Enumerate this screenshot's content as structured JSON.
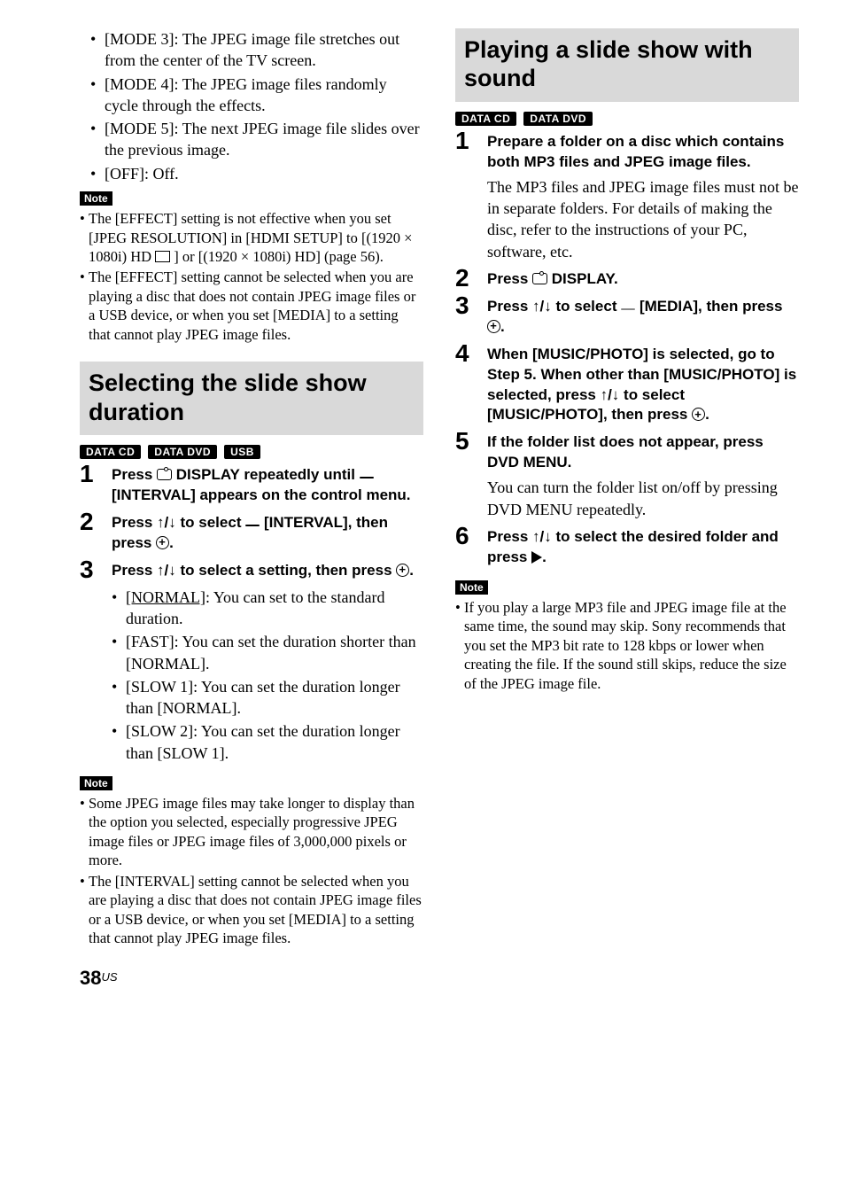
{
  "colors": {
    "bg": "#ffffff",
    "text": "#000000",
    "header_bg": "#d9d9d9",
    "badge_bg": "#000000",
    "badge_text": "#ffffff"
  },
  "left": {
    "mode_bullets": [
      "[MODE 3]: The JPEG image file stretches out from the center of the TV screen.",
      "[MODE 4]: The JPEG image files randomly cycle through the effects.",
      "[MODE 5]: The next JPEG image file slides over the previous image.",
      "[OFF]: Off."
    ],
    "note1_label": "Note",
    "note1_items": [
      "The [EFFECT] setting is not effective when you set [JPEG RESOLUTION] in [HDMI SETUP] to [(1920 × 1080i) HD  ] or [(1920 × 1080i) HD] (page 56).",
      "The [EFFECT] setting cannot be selected when you are playing a disc that does not contain JPEG image files or a USB device, or when you set [MEDIA] to a setting that cannot play JPEG image files."
    ],
    "note1_first_pre": "The [EFFECT] setting is not effective when you set [JPEG RESOLUTION] in [HDMI SETUP] to [(1920 × 1080i) HD ",
    "note1_first_post": " ] or [(1920 × 1080i) HD] (page 56).",
    "header": "Selecting the slide show duration",
    "badges": [
      "DATA CD",
      "DATA DVD",
      "USB"
    ],
    "steps": {
      "s1_pre": "Press ",
      "s1_mid": " DISPLAY repeatedly until ",
      "s1_pill": " ",
      "s1_post": " [INTERVAL] appears on the control menu.",
      "s2_pre": "Press ",
      "s2_arrows": "↑/↓",
      "s2_mid": " to select ",
      "s2_pill": " ",
      "s2_post": " [INTERVAL], then press ",
      "s2_end": ".",
      "s3_pre": "Press ",
      "s3_arrows": "↑/↓",
      "s3_mid": " to select a setting, then press ",
      "s3_end": "."
    },
    "s3_bullets_html": [
      "<u>[NORMAL]</u>: You can set to the standard duration.",
      "[FAST]: You can set the duration shorter than [NORMAL].",
      "[SLOW 1]: You can set the duration longer than [NORMAL].",
      "[SLOW 2]: You can set the duration longer than [SLOW 1]."
    ],
    "note2_label": "Note",
    "note2_items": [
      "Some JPEG image files may take longer to display than the option you selected, especially progressive JPEG image files or JPEG image files of 3,000,000 pixels or more.",
      "The [INTERVAL] setting cannot be selected when you are playing a disc that does not contain JPEG image files or a USB device, or when you set [MEDIA] to a setting that cannot play JPEG image files."
    ]
  },
  "right": {
    "header": "Playing a slide show with sound",
    "badges": [
      "DATA CD",
      "DATA DVD"
    ],
    "steps": {
      "s1_head": "Prepare a folder on a disc which contains both MP3 files and JPEG image files.",
      "s1_body": "The MP3 files and JPEG image files must not be in separate folders. For details of making the disc, refer to the instructions of your PC, software, etc.",
      "s2_pre": "Press ",
      "s2_post": " DISPLAY.",
      "s3_pre": "Press ",
      "s3_arrows": "↑/↓",
      "s3_mid": " to select ",
      "s3_pill": " ",
      "s3_post": " [MEDIA], then press ",
      "s3_end": ".",
      "s4_pre": "When [MUSIC/PHOTO] is selected, go to Step 5. When other than [MUSIC/PHOTO] is selected, press ",
      "s4_arrows": "↑/↓",
      "s4_mid": " to select [MUSIC/PHOTO], then press ",
      "s4_end": ".",
      "s5_head": "If the folder list does not appear, press DVD MENU.",
      "s5_body": "You can turn the folder list on/off by pressing DVD MENU repeatedly.",
      "s6_pre": "Press ",
      "s6_arrows": "↑/↓",
      "s6_mid": " to select the desired folder and press ",
      "s6_end": "."
    },
    "note_label": "Note",
    "note_items": [
      "If you play a large MP3 file and JPEG image file at the same time, the sound may skip. Sony recommends that you set the MP3 bit rate to 128 kbps or lower when creating the file. If the sound still skips, reduce the size of the JPEG image file."
    ]
  },
  "page_number": "38",
  "page_region": "US"
}
